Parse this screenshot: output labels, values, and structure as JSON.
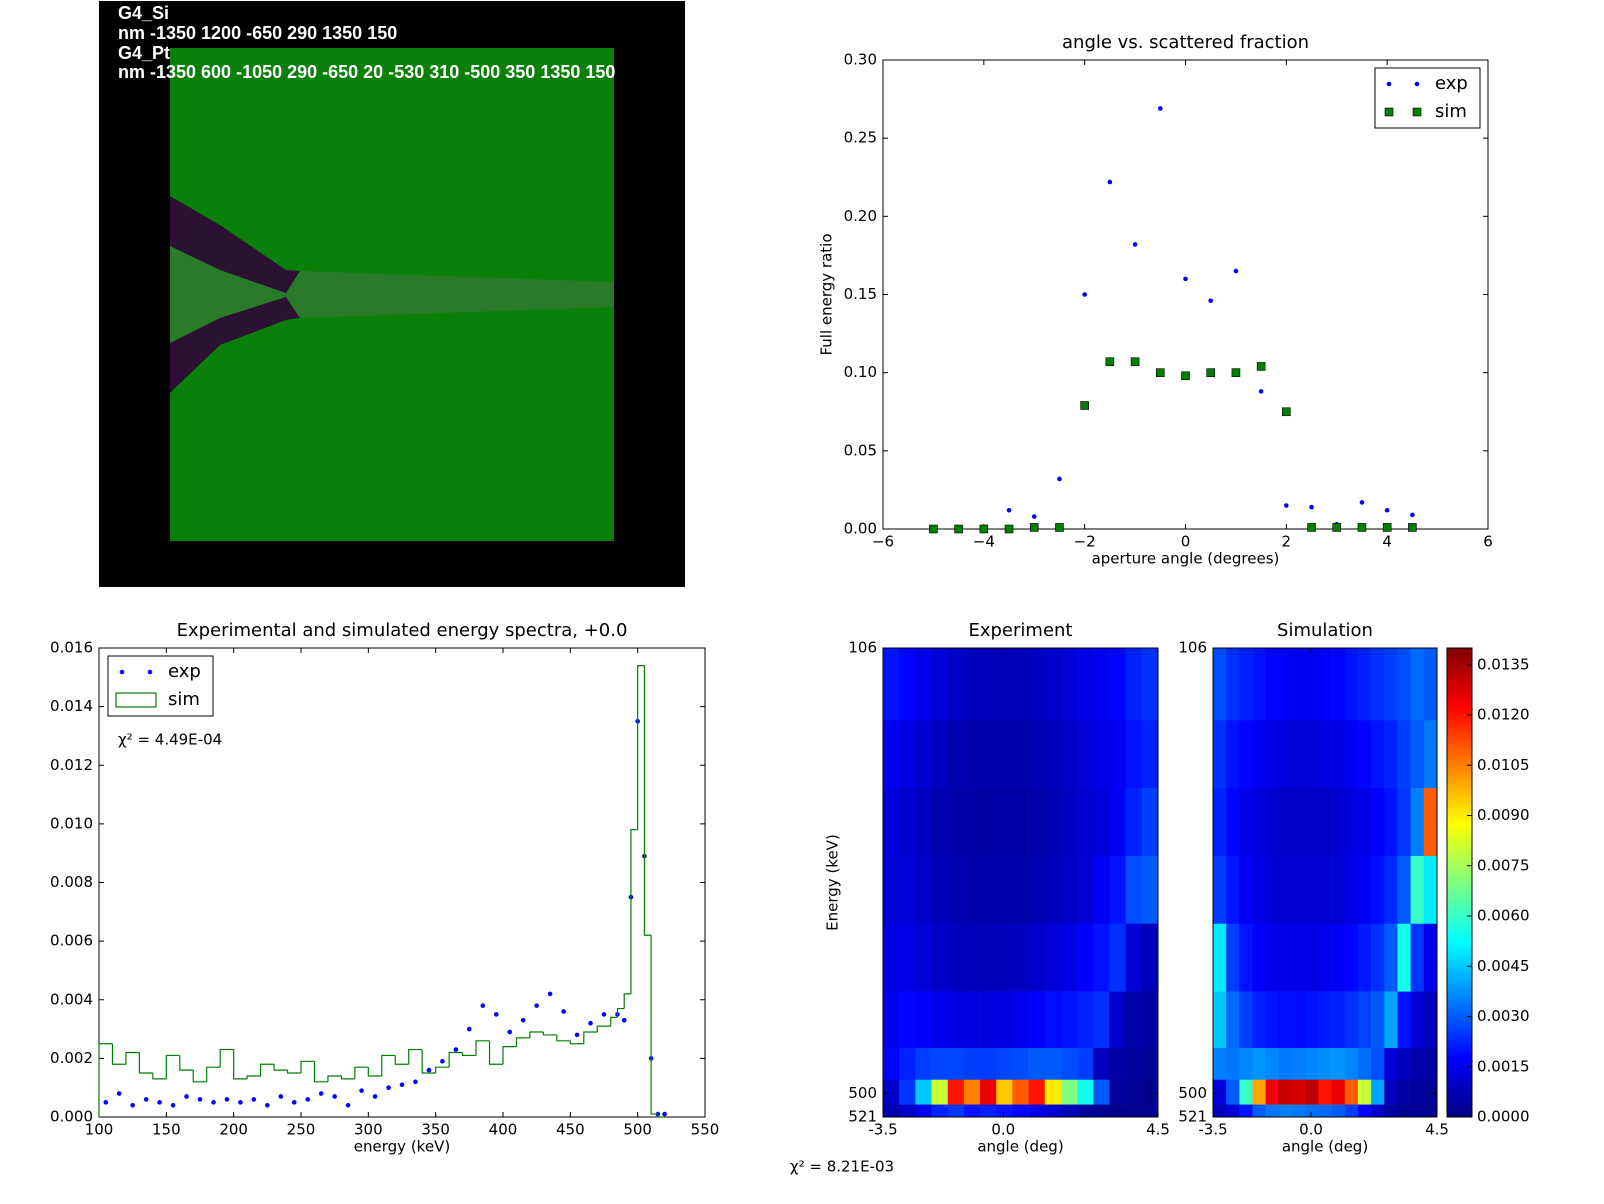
{
  "geometry": {
    "lines": [
      "G4_Si",
      "nm -1350 1200 -650 290 1350 150",
      "G4_Pt",
      "nm -1350 600 -1050 290 -650 20 -530 310 -500 350 1350 150"
    ]
  },
  "chart_data": [
    {
      "type": "scatter",
      "title": "angle vs. scattered fraction",
      "xlabel": "aperture angle (degrees)",
      "ylabel": "Full energy ratio",
      "xlim": [
        -6,
        6
      ],
      "xticks": [
        {
          "value": -6,
          "label": "−6"
        },
        {
          "value": -4,
          "label": "−4"
        },
        {
          "value": -2,
          "label": "−2"
        },
        0,
        2,
        4,
        6
      ],
      "ylim": [
        0,
        0.3
      ],
      "yticks": [
        {
          "value": 0,
          "label": "0.00"
        },
        {
          "value": 0.05,
          "label": "0.05"
        },
        {
          "value": 0.1,
          "label": "0.10"
        },
        {
          "value": 0.15,
          "label": "0.15"
        },
        {
          "value": 0.2,
          "label": "0.20"
        },
        {
          "value": 0.25,
          "label": "0.25"
        },
        {
          "value": 0.3,
          "label": "0.30"
        }
      ],
      "legend": "upper right",
      "series": [
        {
          "name": "exp",
          "color": "#0000ff",
          "marker": "dot",
          "x": [
            -3.5,
            -3,
            -2.5,
            -2,
            -1.5,
            -1,
            -0.5,
            0,
            0.5,
            1,
            1.5,
            2,
            2.5,
            3,
            3.5,
            4,
            4.5
          ],
          "values": [
            0.012,
            0.008,
            0.032,
            0.15,
            0.222,
            0.182,
            0.269,
            0.16,
            0.146,
            0.165,
            0.088,
            0.015,
            0.014,
            0.003,
            0.017,
            0.012,
            0.009
          ]
        },
        {
          "name": "sim",
          "color": "#007f00",
          "marker": "square",
          "x": [
            -5,
            -4.5,
            -4,
            -3.5,
            -3,
            -2.5,
            -2,
            -1.5,
            -1,
            -0.5,
            0,
            0.5,
            1,
            1.5,
            2,
            2.5,
            3,
            3.5,
            4,
            4.5
          ],
          "values": [
            0,
            0,
            0,
            0,
            0.001,
            0.001,
            0.079,
            0.107,
            0.107,
            0.1,
            0.098,
            0.1,
            0.1,
            0.104,
            0.075,
            0.001,
            0.001,
            0.001,
            0.001,
            0.001
          ]
        }
      ]
    },
    {
      "type": "spectrum",
      "title": "Experimental and simulated energy spectra, +0.0",
      "xlabel": "energy (keV)",
      "annotation": "χ² = 4.49E-04",
      "xlim": [
        100,
        550
      ],
      "xticks": [
        100,
        150,
        200,
        250,
        300,
        350,
        400,
        450,
        500,
        550
      ],
      "ylim": [
        0,
        0.016
      ],
      "yticks": [
        {
          "value": 0,
          "label": "0.000"
        },
        {
          "value": 0.002,
          "label": "0.002"
        },
        {
          "value": 0.004,
          "label": "0.004"
        },
        {
          "value": 0.006,
          "label": "0.006"
        },
        {
          "value": 0.008,
          "label": "0.008"
        },
        {
          "value": 0.01,
          "label": "0.010"
        },
        {
          "value": 0.012,
          "label": "0.012"
        },
        {
          "value": 0.014,
          "label": "0.014"
        },
        {
          "value": 0.016,
          "label": "0.016"
        }
      ],
      "legend": "upper left",
      "series": [
        {
          "name": "exp",
          "color": "#0000ff",
          "x": [
            105,
            115,
            125,
            135,
            145,
            155,
            165,
            175,
            185,
            195,
            205,
            215,
            225,
            235,
            245,
            255,
            265,
            275,
            285,
            295,
            305,
            315,
            325,
            335,
            345,
            355,
            365,
            375,
            385,
            395,
            405,
            415,
            425,
            435,
            445,
            455,
            465,
            475,
            485,
            490,
            495,
            500,
            505,
            510,
            515,
            520
          ],
          "values": [
            0.0005,
            0.0008,
            0.0004,
            0.0006,
            0.0005,
            0.0004,
            0.0007,
            0.0006,
            0.0005,
            0.0006,
            0.0005,
            0.0006,
            0.0004,
            0.0007,
            0.0005,
            0.0006,
            0.0008,
            0.0007,
            0.0004,
            0.0009,
            0.0007,
            0.001,
            0.0011,
            0.0012,
            0.0016,
            0.0019,
            0.0023,
            0.003,
            0.0038,
            0.0035,
            0.0029,
            0.0033,
            0.0038,
            0.0042,
            0.0036,
            0.0028,
            0.0032,
            0.0035,
            0.0035,
            0.0033,
            0.0075,
            0.0135,
            0.0089,
            0.002,
            0.0001,
            0.0001
          ]
        },
        {
          "name": "sim",
          "color": "#007f00",
          "bins": [
            100,
            110,
            120,
            130,
            140,
            150,
            160,
            170,
            180,
            190,
            200,
            210,
            220,
            230,
            240,
            250,
            260,
            270,
            280,
            290,
            300,
            310,
            320,
            330,
            340,
            350,
            360,
            370,
            380,
            390,
            400,
            410,
            420,
            430,
            440,
            450,
            460,
            470,
            480,
            485,
            490,
            495,
            500,
            505,
            510,
            515,
            520
          ],
          "values": [
            0.0025,
            0.0018,
            0.0022,
            0.0015,
            0.0013,
            0.0021,
            0.0016,
            0.0012,
            0.0017,
            0.0023,
            0.0013,
            0.0014,
            0.0018,
            0.0016,
            0.0015,
            0.0019,
            0.0012,
            0.0014,
            0.0013,
            0.0017,
            0.0014,
            0.0021,
            0.0018,
            0.0023,
            0.0015,
            0.0017,
            0.0022,
            0.0021,
            0.0026,
            0.0018,
            0.0024,
            0.0027,
            0.0029,
            0.0028,
            0.0026,
            0.0025,
            0.0029,
            0.0031,
            0.0034,
            0.0037,
            0.0042,
            0.0098,
            0.0154,
            0.0062,
            0.0001,
            0
          ]
        }
      ]
    },
    {
      "type": "heatmap",
      "title": "Experiment",
      "xlabel": "angle (deg)",
      "ylabel": "Energy (keV)",
      "xlim": [
        -3.5,
        4.5
      ],
      "xticks": [
        -3.5,
        {
          "value": 0,
          "label": "0.0"
        },
        4.5
      ],
      "ylim": [
        521,
        106
      ],
      "yticks": [
        106,
        500,
        521
      ],
      "zlim": [
        0,
        0.014
      ],
      "y_edges": [
        106,
        170,
        230,
        290,
        350,
        410,
        460,
        488,
        510,
        521
      ],
      "z": [
        [
          0.002,
          0.0018,
          0.0015,
          0.0012,
          0.001,
          0.0009,
          0.0008,
          0.0008,
          0.0008,
          0.0009,
          0.001,
          0.0012,
          0.0014,
          0.0016,
          0.0018,
          0.0022,
          0.0024
        ],
        [
          0.0016,
          0.0014,
          0.0011,
          0.0009,
          0.0007,
          0.0006,
          0.0006,
          0.0006,
          0.0006,
          0.0007,
          0.0008,
          0.001,
          0.0012,
          0.0014,
          0.0016,
          0.002,
          0.0022
        ],
        [
          0.0013,
          0.0011,
          0.0009,
          0.0007,
          0.0006,
          0.0005,
          0.0005,
          0.0005,
          0.0005,
          0.0006,
          0.0007,
          0.0009,
          0.0011,
          0.0013,
          0.0016,
          0.0022,
          0.0026
        ],
        [
          0.0012,
          0.0012,
          0.001,
          0.0008,
          0.0007,
          0.0006,
          0.0006,
          0.0006,
          0.0006,
          0.0007,
          0.0008,
          0.001,
          0.0012,
          0.0016,
          0.002,
          0.0028,
          0.003
        ],
        [
          0.0014,
          0.0014,
          0.0012,
          0.001,
          0.0009,
          0.0008,
          0.0008,
          0.0008,
          0.0009,
          0.001,
          0.0012,
          0.0014,
          0.0017,
          0.002,
          0.0024,
          0.0012,
          0.0008
        ],
        [
          0.0016,
          0.0018,
          0.0017,
          0.0015,
          0.0014,
          0.0013,
          0.0013,
          0.0014,
          0.0015,
          0.0017,
          0.0019,
          0.002,
          0.0022,
          0.0024,
          0.001,
          0.0006,
          0.0005
        ],
        [
          0.0018,
          0.0022,
          0.0026,
          0.0027,
          0.0027,
          0.0026,
          0.0026,
          0.0027,
          0.0028,
          0.003,
          0.003,
          0.0028,
          0.0026,
          0.0008,
          0.0005,
          0.0004,
          0.0003
        ],
        [
          0.001,
          0.0025,
          0.0045,
          0.008,
          0.012,
          0.0105,
          0.0125,
          0.0095,
          0.011,
          0.012,
          0.009,
          0.007,
          0.0055,
          0.003,
          0.0004,
          0.0003,
          0.0002
        ],
        [
          0.0006,
          0.001,
          0.0015,
          0.0022,
          0.0025,
          0.002,
          0.0022,
          0.002,
          0.0018,
          0.0015,
          0.0012,
          0.0008,
          0.0004,
          0.0003,
          0.0002,
          0.0002,
          0.0002
        ]
      ]
    },
    {
      "type": "heatmap",
      "title": "Simulation",
      "xlabel": "angle (deg)",
      "xlim": [
        -3.5,
        4.5
      ],
      "xticks": [
        -3.5,
        {
          "value": 0,
          "label": "0.0"
        },
        4.5
      ],
      "ylim": [
        521,
        106
      ],
      "yticks": [
        106,
        500,
        521
      ],
      "zlim": [
        0,
        0.014
      ],
      "y_edges": [
        106,
        170,
        230,
        290,
        350,
        410,
        460,
        488,
        510,
        521
      ],
      "z": [
        [
          0.0028,
          0.0024,
          0.0022,
          0.002,
          0.0018,
          0.0017,
          0.0016,
          0.0016,
          0.0017,
          0.0018,
          0.002,
          0.0022,
          0.0024,
          0.0026,
          0.0028,
          0.0032,
          0.003
        ],
        [
          0.0024,
          0.002,
          0.0018,
          0.0016,
          0.0014,
          0.0013,
          0.0012,
          0.0012,
          0.0013,
          0.0014,
          0.0016,
          0.0018,
          0.002,
          0.0022,
          0.0026,
          0.003,
          0.0034
        ],
        [
          0.0022,
          0.0018,
          0.0015,
          0.0013,
          0.0011,
          0.001,
          0.001,
          0.001,
          0.001,
          0.0011,
          0.0013,
          0.0015,
          0.0017,
          0.002,
          0.0025,
          0.0035,
          0.011
        ],
        [
          0.0026,
          0.002,
          0.0016,
          0.0014,
          0.0012,
          0.0011,
          0.0011,
          0.0011,
          0.0011,
          0.0012,
          0.0014,
          0.0016,
          0.0019,
          0.0023,
          0.003,
          0.006,
          0.005
        ],
        [
          0.005,
          0.0026,
          0.002,
          0.0017,
          0.0015,
          0.0014,
          0.0014,
          0.0014,
          0.0015,
          0.0016,
          0.0018,
          0.0021,
          0.0024,
          0.003,
          0.0055,
          0.0025,
          0.0015
        ],
        [
          0.0045,
          0.0032,
          0.0026,
          0.0022,
          0.002,
          0.0019,
          0.0019,
          0.002,
          0.0021,
          0.0022,
          0.0024,
          0.0027,
          0.003,
          0.004,
          0.002,
          0.0012,
          0.0008
        ],
        [
          0.0035,
          0.0034,
          0.0036,
          0.0038,
          0.0036,
          0.0034,
          0.0035,
          0.0036,
          0.0037,
          0.0038,
          0.0036,
          0.0032,
          0.0028,
          0.0012,
          0.0008,
          0.0006,
          0.0005
        ],
        [
          0.0012,
          0.003,
          0.006,
          0.01,
          0.0125,
          0.013,
          0.0128,
          0.0132,
          0.012,
          0.0125,
          0.011,
          0.008,
          0.004,
          0.0008,
          0.0005,
          0.0004,
          0.0003
        ],
        [
          0.0008,
          0.0012,
          0.002,
          0.003,
          0.0034,
          0.0035,
          0.0034,
          0.0033,
          0.0032,
          0.003,
          0.0026,
          0.0018,
          0.001,
          0.0005,
          0.0003,
          0.0003,
          0.0002
        ]
      ],
      "colorbar": {
        "zticks": [
          {
            "value": 0,
            "label": "0.0000"
          },
          {
            "value": 0.0015,
            "label": "0.0015"
          },
          {
            "value": 0.003,
            "label": "0.0030"
          },
          {
            "value": 0.0045,
            "label": "0.0045"
          },
          {
            "value": 0.006,
            "label": "0.0060"
          },
          {
            "value": 0.0075,
            "label": "0.0075"
          },
          {
            "value": 0.009,
            "label": "0.0090"
          },
          {
            "value": 0.0105,
            "label": "0.0105"
          },
          {
            "value": 0.012,
            "label": "0.0120"
          },
          {
            "value": 0.0135,
            "label": "0.0135"
          }
        ]
      }
    }
  ],
  "footer": "χ² = 8.21E-03"
}
